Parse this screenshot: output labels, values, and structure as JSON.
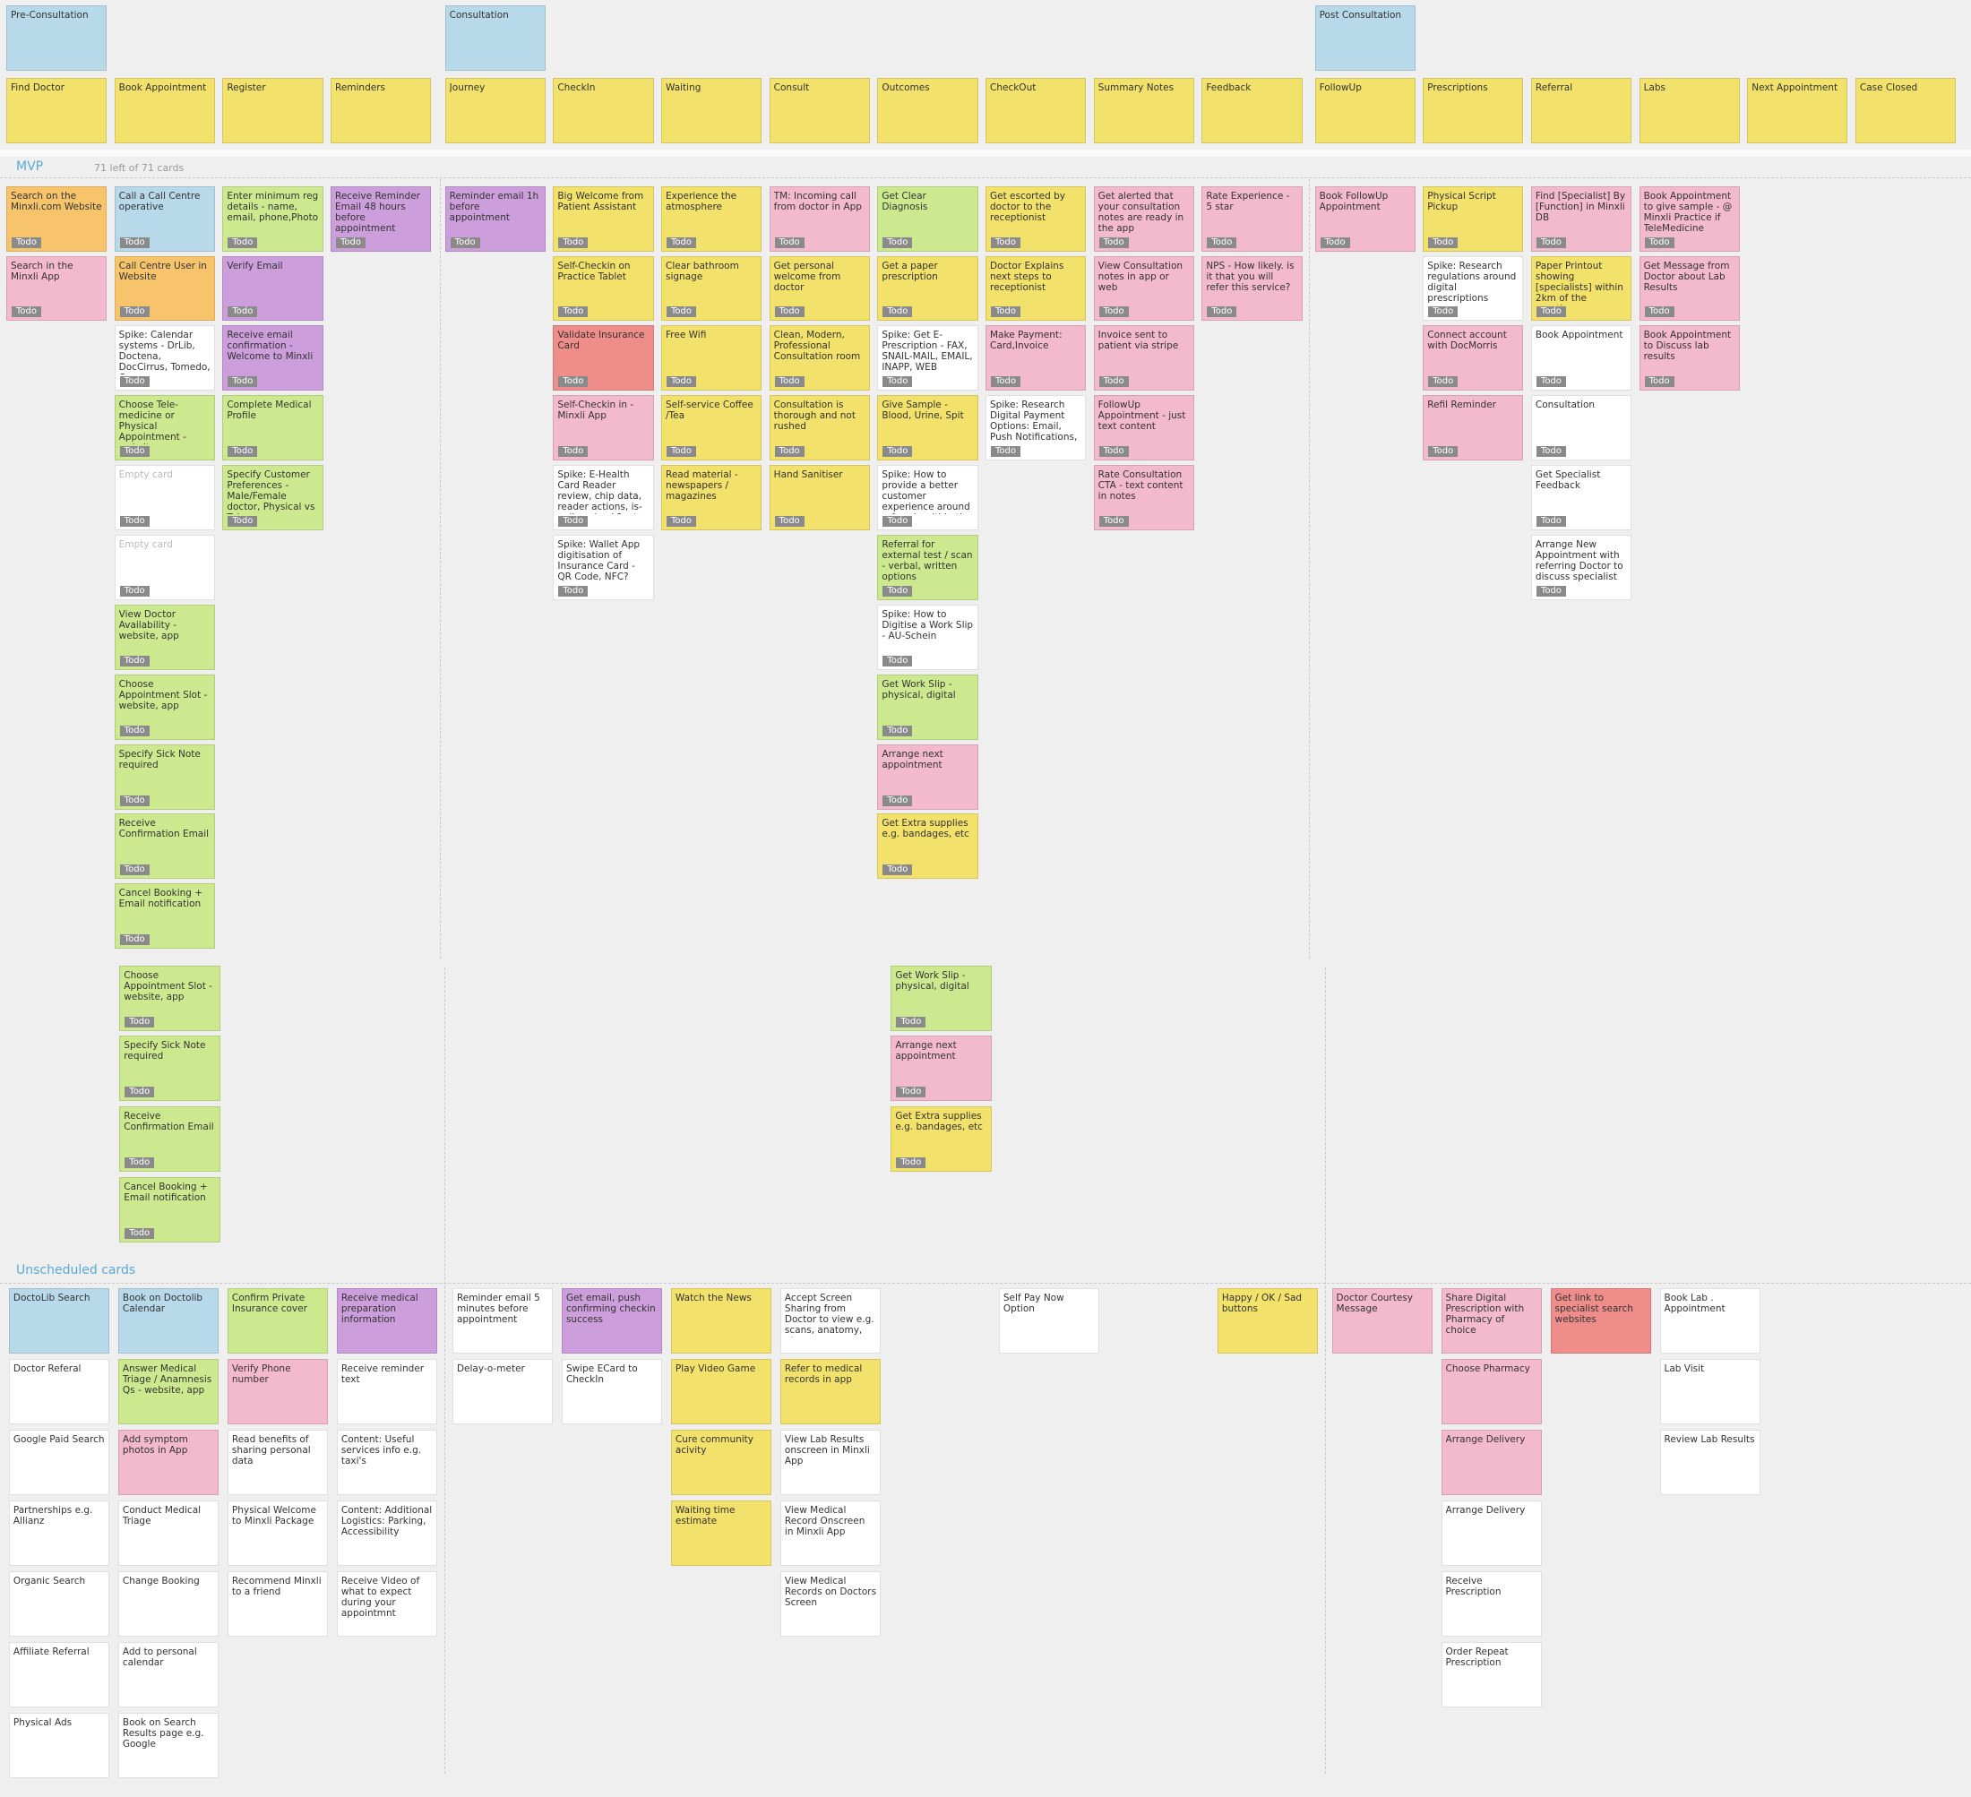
{
  "epics": [
    "Pre-Consultation",
    "Consultation",
    "Post Consultation"
  ],
  "activities": [
    "Find Doctor",
    "Book Appointment",
    "Register",
    "Reminders",
    "Journey",
    "CheckIn",
    "Waiting",
    "Consult",
    "Outcomes",
    "CheckOut",
    "Summary Notes",
    "Feedback",
    "FollowUp",
    "Prescriptions",
    "Referral",
    "Labs",
    "Next Appointment",
    "Case Closed"
  ],
  "mvp": {
    "label": "MVP",
    "summary": "71 left of 71 cards",
    "columns": [
      [
        {
          "text": "Search on the Minxli.com Website",
          "color": "#f7c46c",
          "status": "Todo"
        },
        {
          "text": "Search in the Minxli App",
          "color": "#f3b9cc",
          "status": "Todo"
        }
      ],
      [
        {
          "text": "Call a Call Centre operative",
          "color": "#b7d9ea",
          "status": "Todo"
        },
        {
          "text": "Call Centre User in Website",
          "color": "#f7c46c",
          "status": "Todo"
        },
        {
          "text": "Spike: Calendar systems - DrLib, Doctena, DocCirrus, Tomedo, Own.",
          "color": "#ffffff",
          "status": "Todo"
        },
        {
          "text": "Choose Tele-medicine or Physical Appointment - website, app",
          "color": "#cde98f",
          "status": "Todo"
        },
        {
          "text": "Empty card",
          "color": "#ffffff",
          "muted": true,
          "status": "Todo"
        },
        {
          "text": "Empty card",
          "color": "#ffffff",
          "muted": true,
          "status": "Todo"
        },
        {
          "text": "View Doctor Availability - website, app",
          "color": "#cde98f",
          "status": "Todo"
        },
        {
          "text": "Choose Appointment Slot - website, app",
          "color": "#cde98f",
          "status": "Todo"
        },
        {
          "text": "Specify Sick Note required",
          "color": "#cde98f",
          "status": "Todo"
        },
        {
          "text": "Receive Confirmation Email",
          "color": "#cde98f",
          "status": "Todo"
        },
        {
          "text": "Cancel Booking + Email notification",
          "color": "#cde98f",
          "status": "Todo"
        }
      ],
      [
        {
          "text": "Enter minimum reg details - name, email, phone,Photo",
          "color": "#cde98f",
          "status": "Todo"
        },
        {
          "text": "Verify Email",
          "color": "#cc9edb",
          "status": "Todo"
        },
        {
          "text": "Receive email confirmation - Welcome to Minxli",
          "color": "#cc9edb",
          "status": "Todo"
        },
        {
          "text": "Complete Medical Profile",
          "color": "#cde98f",
          "status": "Todo"
        },
        {
          "text": "Specify Customer Preferences - Male/Female doctor, Physical vs Tele,",
          "color": "#cde98f",
          "status": "Todo"
        }
      ],
      [
        {
          "text": "Receive Reminder Email 48 hours before appointment",
          "color": "#cc9edb",
          "status": "Todo"
        }
      ],
      [
        {
          "text": "Reminder email 1h before appointment",
          "color": "#cc9edb",
          "status": "Todo"
        }
      ],
      [
        {
          "text": "Big Welcome from Patient Assistant",
          "color": "#f2e16b",
          "status": "Todo"
        },
        {
          "text": "Self-Checkin on Practice Tablet",
          "color": "#f2e16b",
          "status": "Todo"
        },
        {
          "text": "Validate Insurance Card",
          "color": "#ee8d8a",
          "status": "Todo"
        },
        {
          "text": "Self-Checkin in - Minxli App",
          "color": "#f3b9cc",
          "status": "Todo"
        },
        {
          "text": "Spike: E-Health Card Reader review, chip data, reader actions, is-online check?, etc..",
          "color": "#ffffff",
          "status": "Todo"
        },
        {
          "text": "Spike: Wallet App digitisation of Insurance Card - QR Code, NFC?",
          "color": "#ffffff",
          "status": "Todo"
        }
      ],
      [
        {
          "text": "Experience the atmosphere",
          "color": "#f2e16b",
          "status": "Todo"
        },
        {
          "text": "Clear bathroom signage",
          "color": "#f2e16b",
          "status": "Todo"
        },
        {
          "text": "Free Wifi",
          "color": "#f2e16b",
          "status": "Todo"
        },
        {
          "text": "Self-service Coffee /Tea",
          "color": "#f2e16b",
          "status": "Todo"
        },
        {
          "text": "Read material - newspapers / magazines",
          "color": "#f2e16b",
          "status": "Todo"
        }
      ],
      [
        {
          "text": "TM: Incoming call from doctor in App",
          "color": "#f3b9cc",
          "status": "Todo"
        },
        {
          "text": "Get personal welcome from doctor",
          "color": "#f2e16b",
          "status": "Todo"
        },
        {
          "text": "Clean, Modern, Professional Consultation room",
          "color": "#f2e16b",
          "status": "Todo"
        },
        {
          "text": "Consultation is thorough and not rushed",
          "color": "#f2e16b",
          "status": "Todo"
        },
        {
          "text": "Hand Sanitiser",
          "color": "#f2e16b",
          "status": "Todo"
        }
      ],
      [
        {
          "text": "Get Clear Diagnosis",
          "color": "#cde98f",
          "status": "Todo"
        },
        {
          "text": "Get a paper prescription",
          "color": "#f2e16b",
          "status": "Todo"
        },
        {
          "text": "Spike: Get E-Prescription - FAX, SNAIL-MAIL, EMAIL, INAPP, WEB",
          "color": "#ffffff",
          "status": "Todo"
        },
        {
          "text": "Give Sample - Blood, Urine, Spit",
          "color": "#f2e16b",
          "status": "Todo"
        },
        {
          "text": "Spike: How to provide a better customer experience around referrals within the",
          "color": "#ffffff",
          "status": "Todo"
        },
        {
          "text": "Referral for external test / scan - verbal, written options",
          "color": "#cde98f",
          "status": "Todo"
        },
        {
          "text": "Spike: How to Digitise a Work Slip - AU-Schein",
          "color": "#ffffff",
          "status": "Todo"
        },
        {
          "text": "Get Work Slip - physical, digital",
          "color": "#cde98f",
          "status": "Todo"
        },
        {
          "text": "Arrange next appointment",
          "color": "#f3b9cc",
          "status": "Todo"
        },
        {
          "text": "Get Extra supplies e.g. bandages, etc",
          "color": "#f2e16b",
          "status": "Todo"
        }
      ],
      [
        {
          "text": "Get escorted by doctor to the receptionist",
          "color": "#f2e16b",
          "status": "Todo"
        },
        {
          "text": "Doctor Explains next steps to receptionist",
          "color": "#f2e16b",
          "status": "Todo"
        },
        {
          "text": "Make Payment: Card,Invoice",
          "color": "#f3b9cc",
          "status": "Todo"
        },
        {
          "text": "Spike: Research Digital Payment Options: Email, Push Notifications,",
          "color": "#ffffff",
          "status": "Todo"
        }
      ],
      [
        {
          "text": "Get alerted that your consultation notes are ready in the app",
          "color": "#f3b9cc",
          "status": "Todo"
        },
        {
          "text": "View Consultation notes in app or web",
          "color": "#f3b9cc",
          "status": "Todo"
        },
        {
          "text": "Invoice sent to patient via stripe",
          "color": "#f3b9cc",
          "status": "Todo"
        },
        {
          "text": "FollowUp Appointment - just text content",
          "color": "#f3b9cc",
          "status": "Todo"
        },
        {
          "text": "Rate Consultation CTA - text content in notes",
          "color": "#f3b9cc",
          "status": "Todo"
        }
      ],
      [
        {
          "text": "Rate Experience - 5 star",
          "color": "#f3b9cc",
          "status": "Todo"
        },
        {
          "text": "NPS - How likely. is it that you will refer this service?",
          "color": "#f3b9cc",
          "status": "Todo"
        }
      ],
      [
        {
          "text": "Book FollowUp Appointment",
          "color": "#f3b9cc",
          "status": "Todo"
        }
      ],
      [
        {
          "text": "Physical Script Pickup",
          "color": "#f2e16b",
          "status": "Todo"
        },
        {
          "text": "Spike: Research regulations around digital prescriptions",
          "color": "#ffffff",
          "status": "Todo"
        },
        {
          "text": "Connect account with DocMorris",
          "color": "#f3b9cc",
          "status": "Todo"
        },
        {
          "text": "Refil Reminder",
          "color": "#f3b9cc",
          "status": "Todo"
        }
      ],
      [
        {
          "text": "Find [Specialist] By [Function] in Minxli DB",
          "color": "#f3b9cc",
          "status": "Todo"
        },
        {
          "text": "Paper Printout showing [specialists] within 2km of the practice",
          "color": "#f2e16b",
          "status": "Todo"
        },
        {
          "text": "Book Appointment",
          "color": "#ffffff",
          "status": "Todo"
        },
        {
          "text": "Consultation",
          "color": "#ffffff",
          "status": "Todo"
        },
        {
          "text": "Get Specialist Feedback",
          "color": "#ffffff",
          "status": "Todo"
        },
        {
          "text": "Arrange New Appointment with referring Doctor to discuss specialist",
          "color": "#ffffff",
          "status": "Todo"
        }
      ],
      [
        {
          "text": "Book Appointment to give sample - @ Minxli Practice if TeleMedicine",
          "color": "#f3b9cc",
          "status": "Todo"
        },
        {
          "text": "Get Message from Doctor about Lab Results",
          "color": "#f3b9cc",
          "status": "Todo"
        },
        {
          "text": "Book Appointment to Discuss lab results",
          "color": "#f3b9cc",
          "status": "Todo"
        }
      ],
      [],
      []
    ]
  },
  "dragged": {
    "columns": [
      [],
      [
        {
          "text": "Choose Appointment Slot - website, app",
          "color": "#cde98f",
          "status": "Todo"
        },
        {
          "text": "Specify Sick Note required",
          "color": "#cde98f",
          "status": "Todo"
        },
        {
          "text": "Receive Confirmation Email",
          "color": "#cde98f",
          "status": "Todo"
        },
        {
          "text": "Cancel Booking + Email notification",
          "color": "#cde98f",
          "status": "Todo"
        }
      ],
      [],
      [],
      [],
      [],
      [],
      [],
      [
        {
          "text": "Get Work Slip - physical, digital",
          "color": "#cde98f",
          "status": "Todo"
        },
        {
          "text": "Arrange next appointment",
          "color": "#f3b9cc",
          "status": "Todo"
        },
        {
          "text": "Get Extra supplies e.g. bandages, etc",
          "color": "#f2e16b",
          "status": "Todo"
        }
      ],
      [],
      [],
      [],
      [],
      [],
      [],
      [],
      [],
      []
    ]
  },
  "unscheduled": {
    "label": "Unscheduled cards",
    "columns": [
      [
        {
          "text": "DoctoLib Search",
          "color": "#b7d9ea"
        },
        {
          "text": "Doctor Referal",
          "color": "#ffffff"
        },
        {
          "text": "Google Paid Search",
          "color": "#ffffff"
        },
        {
          "text": "Partnerships e.g. Allianz",
          "color": "#ffffff"
        },
        {
          "text": "Organic Search",
          "color": "#ffffff"
        },
        {
          "text": "Affiliate Referral",
          "color": "#ffffff"
        },
        {
          "text": "Physical Ads",
          "color": "#ffffff"
        }
      ],
      [
        {
          "text": "Book on Doctolib Calendar",
          "color": "#b7d9ea"
        },
        {
          "text": "Answer Medical Triage / Anamnesis Qs - website, app",
          "color": "#cde98f"
        },
        {
          "text": "Add symptom photos in App",
          "color": "#f3b9cc"
        },
        {
          "text": "Conduct Medical Triage",
          "color": "#ffffff"
        },
        {
          "text": "Change Booking",
          "color": "#ffffff"
        },
        {
          "text": "Add to personal calendar",
          "color": "#ffffff"
        },
        {
          "text": "Book on Search Results page e.g. Google",
          "color": "#ffffff"
        }
      ],
      [
        {
          "text": "Confirm Private Insurance cover",
          "color": "#cde98f"
        },
        {
          "text": "Verify Phone number",
          "color": "#f3b9cc"
        },
        {
          "text": "Read benefits of sharing personal data",
          "color": "#ffffff"
        },
        {
          "text": "Physical Welcome to Minxli Package",
          "color": "#ffffff"
        },
        {
          "text": "Recommend Minxli to a friend",
          "color": "#ffffff"
        }
      ],
      [
        {
          "text": "Receive medical preparation information",
          "color": "#cc9edb"
        },
        {
          "text": "Receive reminder text",
          "color": "#ffffff"
        },
        {
          "text": "Content: Useful services info e.g. taxi's",
          "color": "#ffffff"
        },
        {
          "text": "Content: Additional Logistics: Parking, Accessibility",
          "color": "#ffffff"
        },
        {
          "text": "Receive Video of what to expect during your appointmnt",
          "color": "#ffffff"
        }
      ],
      [
        {
          "text": "Reminder email 5 minutes before appointment",
          "color": "#ffffff"
        },
        {
          "text": "Delay-o-meter",
          "color": "#ffffff"
        }
      ],
      [
        {
          "text": "Get email, push confirming checkin success",
          "color": "#cc9edb"
        },
        {
          "text": "Swipe ECard to CheckIn",
          "color": "#ffffff"
        }
      ],
      [
        {
          "text": "Watch the News",
          "color": "#f2e16b"
        },
        {
          "text": "Play Video Game",
          "color": "#f2e16b"
        },
        {
          "text": "Cure community acivity",
          "color": "#f2e16b"
        },
        {
          "text": "Waiting time estimate",
          "color": "#f2e16b"
        }
      ],
      [
        {
          "text": "Accept Screen Sharing from Doctor to view e.g. scans, anatomy, etc..",
          "color": "#ffffff"
        },
        {
          "text": "Refer to medical records in app",
          "color": "#f2e16b"
        },
        {
          "text": "View Lab Results onscreen in Minxli App",
          "color": "#ffffff"
        },
        {
          "text": "View Medical Record Onscreen in Minxli App",
          "color": "#ffffff"
        },
        {
          "text": "View Medical Records on Doctors Screen",
          "color": "#ffffff"
        }
      ],
      [],
      [
        {
          "text": "Self Pay Now Option",
          "color": "#ffffff"
        }
      ],
      [],
      [
        {
          "text": "Happy / OK / Sad buttons",
          "color": "#f2e16b"
        }
      ],
      [
        {
          "text": "Doctor Courtesy Message",
          "color": "#f3b9cc"
        }
      ],
      [
        {
          "text": "Share Digital Prescription with Pharmacy of choice",
          "color": "#f3b9cc"
        },
        {
          "text": "Choose Pharmacy",
          "color": "#f3b9cc"
        },
        {
          "text": "Arrange Delivery",
          "color": "#f3b9cc"
        },
        {
          "text": "Arrange Delivery",
          "color": "#ffffff"
        },
        {
          "text": "Receive Prescription",
          "color": "#ffffff"
        },
        {
          "text": "Order Repeat Prescription",
          "color": "#ffffff"
        }
      ],
      [
        {
          "text": "Get link to specialist search websites",
          "color": "#ee8d8a"
        }
      ],
      [
        {
          "text": "Book Lab . Appointment",
          "color": "#ffffff"
        },
        {
          "text": "Lab Visit",
          "color": "#ffffff"
        },
        {
          "text": "Review Lab Results",
          "color": "#ffffff"
        }
      ],
      [],
      []
    ]
  }
}
